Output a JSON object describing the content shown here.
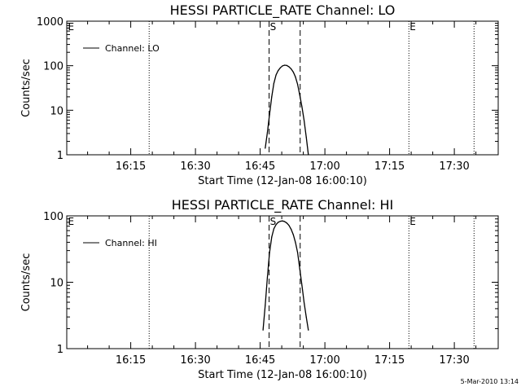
{
  "chart_data": [
    {
      "type": "line",
      "title": "HESSI PARTICLE_RATE Channel: LO",
      "xlabel": "Start Time (12-Jan-08 16:00:10)",
      "ylabel": "Counts/sec",
      "yscale": "log",
      "ylim": [
        1,
        1000
      ],
      "xlim_minutes": [
        0,
        100
      ],
      "x_tick_labels": [
        "16:15",
        "16:30",
        "16:45",
        "17:00",
        "17:15",
        "17:30"
      ],
      "y_tick_labels": [
        "1",
        "10",
        "100",
        "1000"
      ],
      "legend": {
        "position": "top-left",
        "entries": [
          "Channel: LO"
        ]
      },
      "series": [
        {
          "name": "Channel: LO",
          "x": [
            46.0,
            46.5,
            47.0,
            47.5,
            48.0,
            48.5,
            49.0,
            49.5,
            50.0,
            50.5,
            51.0,
            51.5,
            52.0,
            52.5,
            53.0,
            53.5,
            54.0,
            54.5,
            55.0,
            55.5,
            56.0
          ],
          "values": [
            1.4,
            3.2,
            8,
            20,
            40,
            62,
            78,
            90,
            99,
            103,
            101,
            95,
            85,
            72,
            56,
            38,
            22,
            12,
            6,
            2.5,
            1.0
          ]
        }
      ],
      "markers": [
        {
          "label": "E",
          "x_minutes": 0.1,
          "line_style": "none"
        },
        {
          "label": "S",
          "x_minutes": 46.9,
          "line_style": "dashed"
        },
        {
          "label": "",
          "x_minutes": 54.1,
          "line_style": "dashed"
        },
        {
          "label": "",
          "x_minutes": 19.1,
          "line_style": "dotted"
        },
        {
          "label": "E",
          "x_minutes": 79.3,
          "line_style": "dotted"
        },
        {
          "label": "",
          "x_minutes": 94.4,
          "line_style": "dotted"
        }
      ]
    },
    {
      "type": "line",
      "title": "HESSI PARTICLE_RATE Channel: HI",
      "xlabel": "Start Time (12-Jan-08 16:00:10)",
      "ylabel": "Counts/sec",
      "yscale": "log",
      "ylim": [
        1,
        100
      ],
      "xlim_minutes": [
        0,
        100
      ],
      "x_tick_labels": [
        "16:15",
        "16:30",
        "16:45",
        "17:00",
        "17:15",
        "17:30"
      ],
      "y_tick_labels": [
        "1",
        "10",
        "100"
      ],
      "legend": {
        "position": "top-left",
        "entries": [
          "Channel: HI"
        ]
      },
      "series": [
        {
          "name": "Channel: HI",
          "x": [
            45.5,
            46.0,
            46.5,
            47.0,
            47.5,
            48.0,
            48.5,
            49.0,
            49.5,
            50.0,
            50.5,
            51.0,
            51.5,
            52.0,
            52.5,
            53.0,
            53.5,
            54.0,
            54.5,
            55.0,
            55.5,
            56.0
          ],
          "values": [
            1.9,
            4.5,
            12,
            28,
            48,
            64,
            74,
            80,
            83,
            84,
            82,
            78,
            72,
            63,
            52,
            40,
            28,
            16,
            9,
            5,
            3,
            1.9
          ]
        }
      ],
      "markers": [
        {
          "label": "E",
          "x_minutes": 0.1,
          "line_style": "none"
        },
        {
          "label": "S",
          "x_minutes": 46.9,
          "line_style": "dashed"
        },
        {
          "label": "",
          "x_minutes": 54.1,
          "line_style": "dashed"
        },
        {
          "label": "",
          "x_minutes": 19.1,
          "line_style": "dotted"
        },
        {
          "label": "E",
          "x_minutes": 79.3,
          "line_style": "dotted"
        },
        {
          "label": "",
          "x_minutes": 94.4,
          "line_style": "dotted"
        }
      ]
    }
  ],
  "footer": {
    "timestamp": "5-Mar-2010 13:14"
  }
}
